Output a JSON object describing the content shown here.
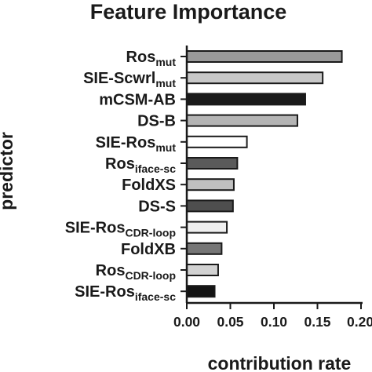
{
  "chart_data": {
    "type": "bar",
    "orientation": "horizontal",
    "title": "Feature Importance",
    "xlabel": "contribution rate",
    "ylabel": "predictor",
    "xlim": [
      0,
      0.2
    ],
    "xticks": [
      "0.00",
      "0.05",
      "0.10",
      "0.15",
      "0.20"
    ],
    "grid": false,
    "categories": [
      {
        "main": "Ros",
        "sub": "mut"
      },
      {
        "main": "SIE-Scwrl",
        "sub": "mut"
      },
      {
        "main": "mCSM-AB",
        "sub": ""
      },
      {
        "main": "DS-B",
        "sub": ""
      },
      {
        "main": "SIE-Ros",
        "sub": "mut"
      },
      {
        "main": "Ros",
        "sub": "iface-sc"
      },
      {
        "main": "FoldXS",
        "sub": ""
      },
      {
        "main": "DS-S",
        "sub": ""
      },
      {
        "main": "SIE-Ros",
        "sub": "CDR-loop"
      },
      {
        "main": "FoldXB",
        "sub": ""
      },
      {
        "main": "Ros",
        "sub": "CDR-loop"
      },
      {
        "main": "SIE-Ros",
        "sub": "iface-sc"
      }
    ],
    "values": [
      0.178,
      0.156,
      0.136,
      0.127,
      0.069,
      0.058,
      0.054,
      0.053,
      0.046,
      0.04,
      0.036,
      0.032
    ],
    "colors": [
      "#999999",
      "#c8c8c8",
      "#1a1a1a",
      "#b4b4b4",
      "#ffffff",
      "#5a5a5a",
      "#c0c0c0",
      "#4e4e4e",
      "#f0f0f0",
      "#767676",
      "#d2d2d2",
      "#141414"
    ]
  }
}
